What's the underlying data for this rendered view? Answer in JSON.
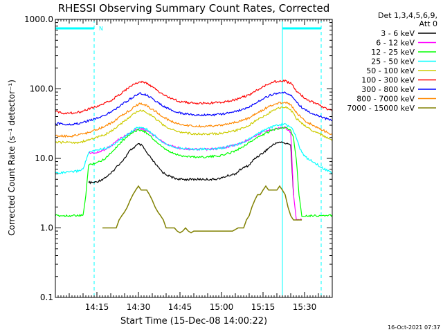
{
  "chart_data": {
    "type": "line",
    "title": "RHESSI Observing Summary Count Rates, Corrected",
    "xlabel": "Start Time (15-Dec-08 14:00:22)",
    "ylabel": "Corrected Count Rate (s⁻¹ detector⁻¹)",
    "yscale": "log",
    "ylim": [
      0.1,
      1000
    ],
    "xlim_min": [
      0,
      100
    ],
    "x_ticks": [
      {
        "t": 15,
        "label": "14:15"
      },
      {
        "t": 30,
        "label": "14:30"
      },
      {
        "t": 45,
        "label": "14:45"
      },
      {
        "t": 60,
        "label": "15:00"
      },
      {
        "t": 75,
        "label": "15:15"
      },
      {
        "t": 90,
        "label": "15:30"
      }
    ],
    "y_ticks": [
      {
        "v": 0.1,
        "label": "0.1"
      },
      {
        "v": 1,
        "label": "1.0"
      },
      {
        "v": 10,
        "label": "10.0"
      },
      {
        "v": 100,
        "label": "100.0"
      },
      {
        "v": 1000,
        "label": "1000.0"
      }
    ],
    "legend_header": [
      "Det 1,3,4,5,6,9,",
      "Att 0"
    ],
    "legend_position": "top-right",
    "series": [
      {
        "name": "3 - 6 keV",
        "color": "#000000",
        "x": [
          10,
          12,
          14,
          15,
          17,
          20,
          22,
          25,
          27,
          29,
          30,
          31,
          32,
          33,
          35,
          37,
          39,
          41,
          43,
          45,
          47,
          50,
          52,
          55,
          57,
          60,
          62,
          65,
          67,
          70,
          72,
          75,
          77,
          79,
          80,
          82,
          84,
          85,
          86,
          87,
          88,
          89,
          90,
          91,
          92,
          93,
          94,
          95,
          96,
          97,
          98,
          99,
          100
        ],
        "y": [
          null,
          4.5,
          4.5,
          4.6,
          5,
          6,
          7.5,
          10,
          13,
          15,
          16,
          15.5,
          14,
          12,
          9.5,
          7.5,
          6.2,
          5.6,
          5.2,
          5,
          5,
          5,
          5,
          5,
          5,
          5.2,
          5.6,
          6,
          7,
          8,
          10,
          12,
          14,
          16,
          17,
          17,
          16,
          16,
          3.0,
          null,
          null,
          null,
          null,
          null,
          null,
          null,
          null,
          null,
          null,
          null,
          null,
          null,
          null
        ]
      },
      {
        "name": "6 - 12 keV",
        "color": "#ff00ff",
        "x": [
          10,
          12,
          15,
          17,
          20,
          23,
          26,
          29,
          31,
          33,
          36,
          39,
          42,
          45,
          50,
          55,
          60,
          63,
          66,
          69,
          72,
          75,
          78,
          80,
          83,
          85,
          86,
          87,
          88,
          89,
          90,
          91,
          92,
          93,
          94,
          95,
          96,
          97,
          98,
          99,
          100
        ],
        "y": [
          null,
          12,
          12,
          13,
          15,
          19,
          22,
          26,
          27,
          25,
          21,
          17,
          15,
          14,
          13.5,
          13.5,
          14,
          15,
          16,
          18,
          21,
          24,
          26,
          27,
          28,
          24,
          3.0,
          1.3,
          1.3,
          1.3,
          null,
          null,
          null,
          null,
          null,
          null,
          null,
          null,
          null,
          null,
          null
        ]
      },
      {
        "name": "12 - 25 keV",
        "color": "#00ff00",
        "x": [
          0,
          2,
          4,
          6,
          8,
          10,
          11,
          12,
          14,
          16,
          18,
          20,
          23,
          26,
          29,
          31,
          33,
          36,
          39,
          42,
          45,
          50,
          55,
          60,
          63,
          66,
          69,
          72,
          75,
          78,
          80,
          83,
          85,
          86,
          87,
          88,
          89,
          90,
          91,
          92,
          93,
          94,
          95,
          96,
          97,
          98,
          99,
          100
        ],
        "y": [
          1.5,
          1.5,
          1.5,
          1.5,
          1.5,
          1.5,
          3,
          8,
          8.5,
          9,
          10,
          12,
          16,
          21,
          25,
          26,
          23,
          18,
          14,
          12,
          11,
          10.5,
          10.5,
          11,
          12,
          13.5,
          16,
          19,
          22,
          25,
          27,
          28,
          25,
          20,
          10,
          3,
          1.5,
          1.5,
          1.5,
          1.5,
          1.5,
          1.5,
          1.5,
          1.5,
          1.5,
          1.5,
          1.5,
          1.5
        ]
      },
      {
        "name": "25 - 50 keV",
        "color": "#00ffff",
        "x": [
          0,
          2,
          4,
          6,
          8,
          10,
          12,
          14,
          16,
          18,
          20,
          23,
          26,
          29,
          31,
          33,
          36,
          39,
          42,
          45,
          50,
          55,
          60,
          63,
          66,
          69,
          72,
          75,
          78,
          80,
          83,
          85,
          86,
          87,
          88,
          89,
          90,
          91,
          92,
          93,
          94,
          95,
          96,
          97,
          98,
          99,
          100
        ],
        "y": [
          6.2,
          6.2,
          6.3,
          6.4,
          6.6,
          7,
          12,
          13,
          13.5,
          14,
          15,
          18,
          22,
          27,
          28,
          26,
          21,
          17,
          15,
          14,
          13.5,
          13.5,
          14,
          15,
          16,
          18,
          21,
          25,
          28,
          30,
          31,
          28,
          25,
          20,
          15,
          12,
          11,
          10,
          9.5,
          9,
          8.5,
          8,
          7.5,
          7,
          6.8,
          6.4,
          6.1
        ]
      },
      {
        "name": "50 - 100 keV",
        "color": "#cccc00",
        "x": [
          0,
          3,
          6,
          9,
          11,
          13,
          15,
          18,
          21,
          24,
          27,
          30,
          31,
          33,
          36,
          39,
          42,
          45,
          50,
          55,
          60,
          65,
          70,
          72,
          75,
          78,
          80,
          83,
          85,
          87,
          89,
          91,
          93,
          95,
          97,
          99,
          100
        ],
        "y": [
          17,
          17,
          17,
          17,
          18,
          19,
          20,
          22,
          26,
          32,
          40,
          48,
          49,
          46,
          38,
          30,
          26,
          24,
          22.5,
          22.5,
          23,
          25,
          30,
          34,
          40,
          47,
          52,
          55,
          50,
          38,
          32,
          28,
          25,
          23,
          21,
          19,
          18
        ]
      },
      {
        "name": "100 - 300 keV",
        "color": "#ff0000",
        "x": [
          0,
          3,
          6,
          9,
          11,
          13,
          15,
          18,
          21,
          24,
          27,
          30,
          31,
          33,
          36,
          39,
          42,
          45,
          50,
          55,
          60,
          65,
          70,
          72,
          75,
          78,
          80,
          83,
          85,
          87,
          89,
          91,
          93,
          95,
          97,
          99,
          100
        ],
        "y": [
          47,
          45,
          45,
          47,
          50,
          53,
          56,
          62,
          72,
          88,
          108,
          125,
          127,
          120,
          100,
          82,
          72,
          66,
          62,
          62,
          64,
          70,
          82,
          92,
          108,
          124,
          128,
          130,
          120,
          95,
          80,
          70,
          64,
          59,
          54,
          50,
          48
        ]
      },
      {
        "name": "300 - 800 keV",
        "color": "#0000ff",
        "x": [
          0,
          3,
          6,
          9,
          11,
          13,
          15,
          18,
          21,
          24,
          27,
          30,
          31,
          33,
          36,
          39,
          42,
          45,
          50,
          55,
          60,
          65,
          70,
          72,
          75,
          78,
          80,
          83,
          85,
          87,
          89,
          91,
          93,
          95,
          97,
          99,
          100
        ],
        "y": [
          32,
          31,
          31,
          32,
          34,
          36,
          38,
          42,
          49,
          59,
          72,
          85,
          86,
          81,
          68,
          56,
          49,
          45,
          42,
          42,
          43,
          47,
          55,
          62,
          72,
          82,
          86,
          88,
          82,
          65,
          54,
          48,
          44,
          41,
          38,
          36,
          35
        ]
      },
      {
        "name": "800 - 7000 keV",
        "color": "#ff8800",
        "x": [
          0,
          3,
          6,
          9,
          11,
          13,
          15,
          18,
          21,
          24,
          27,
          30,
          31,
          33,
          36,
          39,
          42,
          45,
          50,
          55,
          60,
          65,
          70,
          72,
          75,
          78,
          80,
          83,
          85,
          87,
          89,
          91,
          93,
          95,
          97,
          99,
          100
        ],
        "y": [
          21,
          21,
          21,
          22,
          23,
          24,
          26,
          29,
          34,
          41,
          50,
          60,
          61,
          57,
          48,
          39,
          34,
          31,
          29,
          29,
          30,
          33,
          38,
          43,
          50,
          58,
          62,
          64,
          59,
          46,
          38,
          33,
          30,
          27,
          25,
          23,
          22
        ]
      },
      {
        "name": "7000 - 15000 keV",
        "color": "#808000",
        "x": [
          17,
          19,
          20,
          21,
          22,
          23,
          24,
          25,
          26,
          27,
          28,
          29,
          30,
          31,
          32,
          33,
          34,
          35,
          36,
          37,
          38,
          39,
          40,
          41,
          42,
          43,
          44,
          45,
          46,
          47,
          48,
          49,
          50,
          55,
          60,
          62,
          64,
          66,
          67,
          68,
          69,
          70,
          71,
          72,
          73,
          74,
          75,
          76,
          77,
          78,
          79,
          80,
          81,
          82,
          83,
          84,
          85,
          86,
          87,
          88,
          89
        ],
        "y": [
          1.0,
          1.0,
          1.0,
          1.0,
          1.0,
          1.3,
          1.5,
          1.7,
          2.0,
          2.5,
          3.0,
          3.5,
          4.0,
          3.5,
          3.5,
          3.5,
          3.0,
          2.5,
          2.0,
          1.7,
          1.5,
          1.3,
          1.0,
          1.0,
          1.0,
          1.0,
          0.9,
          0.85,
          0.9,
          1.0,
          0.9,
          0.85,
          0.9,
          0.9,
          0.9,
          0.9,
          0.9,
          1.0,
          1.0,
          1.0,
          1.3,
          1.5,
          2.0,
          2.5,
          3.0,
          3.0,
          3.5,
          4.0,
          3.5,
          3.5,
          3.5,
          3.5,
          4.0,
          3.5,
          3.0,
          2.0,
          1.5,
          1.3,
          1.3,
          1.3,
          1.3
        ]
      }
    ],
    "attenuator_markers": [
      {
        "t": 0,
        "style": "solid"
      },
      {
        "t": 14,
        "style": "dashed"
      },
      {
        "t": 82,
        "style": "solid"
      },
      {
        "t": 96,
        "style": "dashed"
      }
    ],
    "annotation": {
      "label": "N",
      "t": 16.5
    },
    "cyan_top_bars": [
      [
        0,
        14
      ],
      [
        82,
        96
      ]
    ],
    "timestamp": "16-Oct-2021 07:37"
  }
}
